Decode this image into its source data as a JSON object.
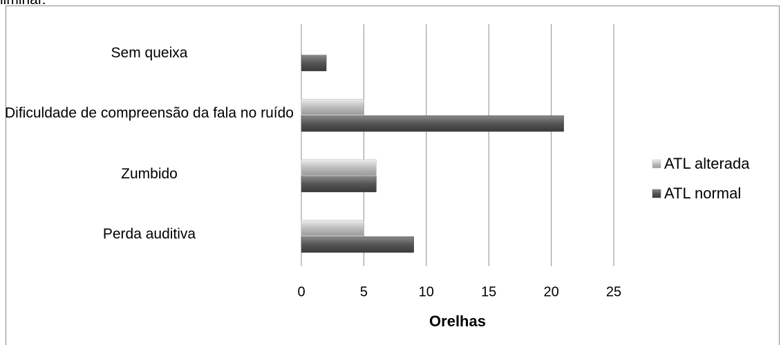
{
  "caption": "liminar.",
  "chart_data": {
    "type": "hbar",
    "xlabel": "Orelhas",
    "categories": [
      "Sem queixa",
      "Dificuldade de compreensão da fala no ruído",
      "Zumbido",
      "Perda auditiva"
    ],
    "series": [
      {
        "name": "ATL alterada",
        "color": "#bdbdbd",
        "values": [
          0,
          5,
          6,
          5
        ]
      },
      {
        "name": "ATL normal",
        "color": "#555555",
        "values": [
          2,
          21,
          6,
          9
        ]
      }
    ],
    "xlim": [
      0,
      25
    ],
    "xticks": [
      0,
      5,
      10,
      15,
      20,
      25
    ],
    "grid": true,
    "legend": "right"
  }
}
